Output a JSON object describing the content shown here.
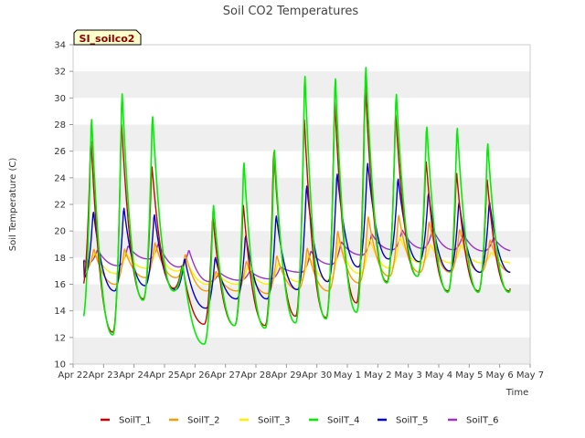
{
  "chart_data": {
    "type": "line",
    "title": "Soil CO2 Temperatures",
    "xlabel": "Time",
    "ylabel": "Soil Temperature (C)",
    "site_tag": "SI_soilco2",
    "x_tick_labels": [
      "Apr 22",
      "Apr 23",
      "Apr 24",
      "Apr 25",
      "Apr 26",
      "Apr 27",
      "Apr 28",
      "Apr 29",
      "Apr 30",
      "May 1",
      "May 2",
      "May 3",
      "May 4",
      "May 5",
      "May 6",
      "May 7"
    ],
    "x_range_days": [
      0,
      15
    ],
    "y_ticks": [
      10,
      12,
      14,
      16,
      18,
      20,
      22,
      24,
      26,
      28,
      30,
      32,
      34
    ],
    "ylim": [
      10,
      34
    ],
    "grid": "horizontal bands",
    "legend_position": "bottom",
    "colors": {
      "band": "#efefef",
      "SoilT_1": "#cc0000",
      "SoilT_2": "#ff9900",
      "SoilT_3": "#ffee00",
      "SoilT_4": "#00ee00",
      "SoilT_5": "#0000cc",
      "SoilT_6": "#9933cc"
    },
    "series": [
      {
        "name": "SoilT_1",
        "day_min": [
          15.8,
          12.4,
          14.9,
          15.7,
          13.0,
          12.9,
          12.9,
          13.6,
          13.5,
          14.6,
          16.2,
          16.6,
          15.5,
          15.5,
          15.5
        ],
        "day_max": [
          27.2,
          28.4,
          25.1,
          17.5,
          21.3,
          22.2,
          26.3,
          28.8,
          30.1,
          31.4,
          29.1,
          25.5,
          24.6,
          24.1,
          23.8
        ]
      },
      {
        "name": "SoilT_2",
        "day_min": [
          17.0,
          16.0,
          16.5,
          16.5,
          15.5,
          15.5,
          15.3,
          15.6,
          15.5,
          16.1,
          16.6,
          16.9,
          16.9,
          16.9,
          16.9
        ],
        "day_max": [
          18.7,
          18.7,
          19.2,
          18.3,
          17.0,
          17.8,
          18.2,
          18.8,
          20.1,
          21.2,
          21.3,
          20.8,
          20.2,
          19.4,
          19.0
        ]
      },
      {
        "name": "SoilT_3",
        "day_min": [
          17.5,
          16.8,
          17.2,
          17.0,
          16.0,
          16.0,
          16.0,
          16.2,
          16.3,
          16.8,
          17.2,
          17.6,
          17.6,
          17.6,
          17.6
        ],
        "day_max": [
          18.4,
          18.4,
          18.8,
          17.8,
          16.8,
          17.3,
          17.6,
          18.3,
          19.4,
          19.5,
          19.6,
          19.0,
          19.0,
          18.4,
          18.1
        ]
      },
      {
        "name": "SoilT_4",
        "day_min": [
          13.3,
          12.2,
          14.8,
          15.5,
          11.5,
          12.9,
          12.7,
          13.1,
          13.4,
          13.9,
          16.1,
          16.6,
          15.4,
          15.4,
          15.4
        ],
        "day_max": [
          28.9,
          30.8,
          29.0,
          17.5,
          22.2,
          25.5,
          26.5,
          32.2,
          32.0,
          32.8,
          30.7,
          28.2,
          28.1,
          26.9,
          25.5
        ]
      },
      {
        "name": "SoilT_5",
        "day_min": [
          16.5,
          15.5,
          15.9,
          15.6,
          14.2,
          14.9,
          14.9,
          15.6,
          16.2,
          17.3,
          17.9,
          17.7,
          17.0,
          16.9,
          16.9
        ],
        "day_max": [
          21.6,
          21.9,
          21.4,
          18.0,
          18.1,
          19.8,
          21.3,
          23.6,
          24.5,
          25.3,
          24.1,
          23.0,
          22.3,
          22.3,
          22.3
        ]
      },
      {
        "name": "SoilT_6",
        "day_min": [
          17.6,
          17.4,
          17.9,
          17.3,
          16.2,
          16.3,
          16.4,
          16.9,
          17.5,
          18.2,
          18.6,
          18.7,
          18.6,
          18.5,
          18.5
        ],
        "day_max": [
          18.6,
          18.9,
          19.1,
          18.6,
          16.9,
          17.0,
          17.3,
          18.5,
          19.2,
          19.8,
          20.1,
          20.2,
          19.8,
          19.5,
          19.4
        ]
      }
    ]
  }
}
